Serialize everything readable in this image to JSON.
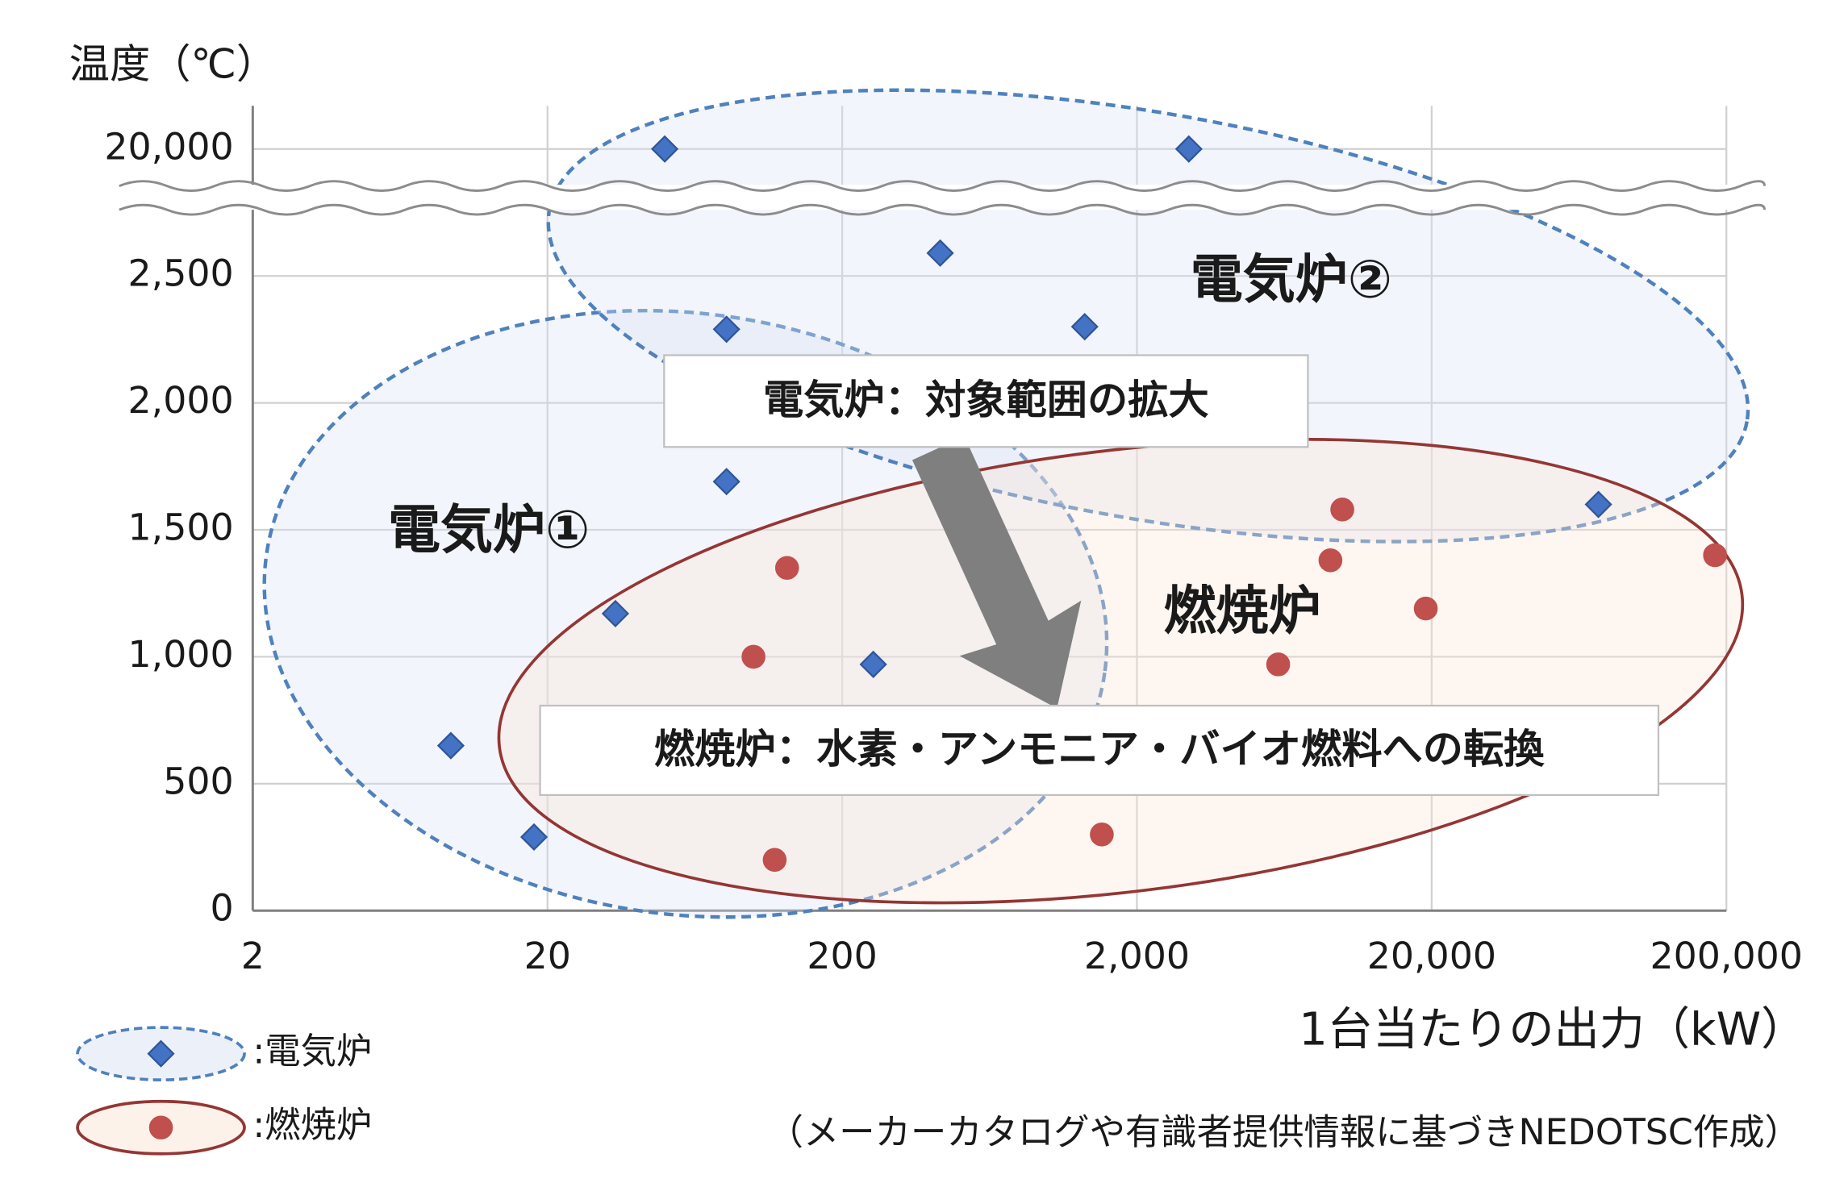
{
  "chart_data": {
    "type": "scatter",
    "y_title": "温度（℃）",
    "x_title": "1台当たりの出力（kW）",
    "source": "（メーカーカタログや有識者提供情報に基づきNEDOTSC作成）",
    "x_scale": "log",
    "xlim": [
      2,
      200000
    ],
    "xticks": [
      2,
      20,
      200,
      {
        "value": 2000,
        "label": "2,000"
      },
      {
        "value": 20000,
        "label": "20,000"
      },
      {
        "value": 200000,
        "label": "200,000"
      }
    ],
    "ylim": [
      0,
      20170
    ],
    "ybreak": [
      2750,
      19750
    ],
    "yticks": [
      0,
      500,
      {
        "value": 1000,
        "label": "1,000"
      },
      {
        "value": 1500,
        "label": "1,500"
      },
      {
        "value": 2000,
        "label": "2,000"
      },
      {
        "value": 2500,
        "label": "2,500"
      },
      {
        "value": 20000,
        "label": "20,000"
      }
    ],
    "grid": true,
    "series": [
      {
        "name": ":電気炉",
        "color": "#4472c4",
        "marker": "diamond",
        "x": [
          9.4,
          18,
          34,
          50,
          81,
          81,
          255,
          430,
          1330,
          3000,
          73600
        ],
        "values": [
          650,
          290,
          1170,
          20000,
          2290,
          1690,
          970,
          2590,
          2300,
          20000,
          1600
        ]
      },
      {
        "name": ":燃焼炉",
        "color": "#c0504d",
        "marker": "circle",
        "x": [
          100,
          118,
          130,
          1520,
          6030,
          9070,
          9950,
          19100,
          183000
        ],
        "values": [
          1000,
          200,
          1350,
          300,
          970,
          1380,
          1580,
          1190,
          1400
        ]
      }
    ],
    "annotations": {
      "region_1": "電気炉①",
      "region_2": "電気炉②",
      "region_3": "燃焼炉",
      "callout_1": "電気炉：対象範囲の拡大",
      "callout_2": "燃焼炉：水素・アンモニア・バイオ燃料への転換"
    }
  }
}
